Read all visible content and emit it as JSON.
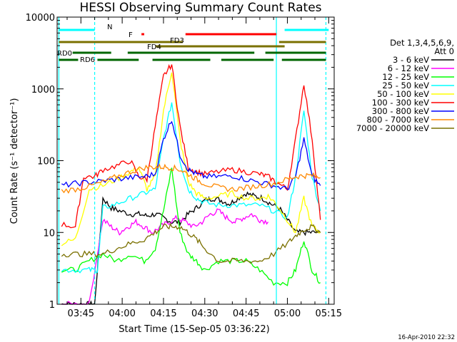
{
  "chart_data": {
    "type": "line",
    "title": "HESSI Observing Summary Count Rates",
    "xlabel": "Start Time (15-Sep-05 03:36:22)",
    "ylabel": "Count Rate (s⁻¹ detector⁻¹)",
    "yscale": "log",
    "ylim": [
      1,
      10000
    ],
    "xlim": [
      "03:36:22",
      "05:17:00"
    ],
    "x_tick_labels": [
      "03:45",
      "04:00",
      "04:15",
      "04:30",
      "04:45",
      "05:00",
      "05:15"
    ],
    "y_tick_labels": [
      "1",
      "10",
      "100",
      "1000",
      "10000"
    ],
    "legend_header": [
      "Det 1,3,4,5,6,9,",
      "Att 0"
    ],
    "legend_position": "right",
    "footer": "16-Apr-2010 22:32",
    "series": [
      {
        "name": "3 - 6 keV",
        "color": "#000000",
        "x": [
          "03:38",
          "03:40",
          "03:43",
          "03:46",
          "03:48",
          "03:50",
          "03:53",
          "03:56",
          "03:59",
          "04:03",
          "04:06",
          "04:09",
          "04:12",
          "04:15",
          "04:18",
          "04:21",
          "04:24",
          "04:27",
          "04:30",
          "04:33",
          "04:36",
          "04:39",
          "04:42",
          "04:45",
          "04:48",
          "04:51",
          "04:54",
          "04:57",
          "05:00",
          "05:03",
          "05:06",
          "05:09",
          "05:12"
        ],
        "y": [
          1,
          1,
          1,
          1,
          1,
          1,
          30,
          22,
          20,
          18,
          18,
          17,
          18,
          16,
          14,
          14,
          18,
          22,
          28,
          30,
          28,
          25,
          30,
          35,
          32,
          30,
          25,
          22,
          15,
          10,
          10,
          10,
          10
        ]
      },
      {
        "name": "6 - 12 keV",
        "color": "#ff00ff",
        "x": [
          "03:38",
          "03:43",
          "03:48",
          "03:53",
          "03:56",
          "03:59",
          "04:02",
          "04:05",
          "04:08",
          "04:11",
          "04:14",
          "04:17",
          "04:20",
          "04:23",
          "04:26",
          "04:29",
          "04:32",
          "04:35",
          "04:38",
          "04:41",
          "04:44",
          "04:47",
          "04:50",
          "04:53"
        ],
        "y": [
          1,
          1,
          1,
          15,
          12,
          10,
          12,
          14,
          12,
          10,
          12,
          14,
          16,
          14,
          12,
          14,
          18,
          20,
          16,
          14,
          16,
          18,
          15,
          14
        ]
      },
      {
        "name": "12 - 25 keV",
        "color": "#00ff00",
        "x": [
          "03:38",
          "03:43",
          "03:48",
          "03:53",
          "03:58",
          "04:03",
          "04:08",
          "04:12",
          "04:15",
          "04:18",
          "04:21",
          "04:24",
          "04:27",
          "04:30",
          "04:35",
          "04:40",
          "04:45",
          "04:50",
          "04:55",
          "05:00",
          "05:03",
          "05:06",
          "05:09",
          "05:12"
        ],
        "y": [
          3,
          3,
          4,
          5,
          4,
          5,
          4,
          6,
          20,
          80,
          10,
          5,
          4,
          3,
          4,
          4,
          4,
          3,
          2,
          2,
          3,
          8,
          3,
          2
        ]
      },
      {
        "name": "25 - 50 keV",
        "color": "#00ffff",
        "x": [
          "03:38",
          "03:43",
          "03:48",
          "03:51",
          "03:53",
          "03:58",
          "04:03",
          "04:08",
          "04:12",
          "04:15",
          "04:18",
          "04:21",
          "04:24",
          "04:27",
          "04:30",
          "04:35",
          "04:40",
          "04:45",
          "04:50",
          "04:55",
          "05:00",
          "05:03",
          "05:06",
          "05:09",
          "05:12"
        ],
        "y": [
          3,
          3,
          3,
          3,
          22,
          25,
          30,
          35,
          40,
          200,
          650,
          100,
          40,
          30,
          26,
          24,
          24,
          24,
          24,
          20,
          16,
          60,
          500,
          60,
          20
        ]
      },
      {
        "name": "50 - 100 keV",
        "color": "#ffff00",
        "x": [
          "03:38",
          "03:43",
          "03:48",
          "03:53",
          "03:58",
          "04:03",
          "04:06",
          "04:09",
          "04:12",
          "04:15",
          "04:18",
          "04:21",
          "04:24",
          "04:27",
          "04:30",
          "04:35",
          "04:40",
          "04:45",
          "04:50",
          "04:53",
          "04:56",
          "05:00",
          "05:03",
          "05:06",
          "05:09",
          "05:12"
        ],
        "y": [
          7,
          8,
          40,
          45,
          55,
          70,
          80,
          40,
          60,
          500,
          1800,
          200,
          50,
          35,
          30,
          32,
          35,
          30,
          30,
          32,
          25,
          15,
          10,
          30,
          12,
          10
        ]
      },
      {
        "name": "100 - 300 keV",
        "color": "#ff0000",
        "x": [
          "03:38",
          "03:43",
          "03:46",
          "03:50",
          "03:53",
          "03:58",
          "04:03",
          "04:06",
          "04:09",
          "04:12",
          "04:15",
          "04:18",
          "04:21",
          "04:24",
          "04:27",
          "04:30",
          "04:35",
          "04:40",
          "04:45",
          "04:50",
          "04:53",
          "04:56",
          "05:00",
          "05:03",
          "05:06",
          "05:09",
          "05:12"
        ],
        "y": [
          13,
          12,
          60,
          60,
          75,
          85,
          100,
          60,
          55,
          300,
          1500,
          2200,
          300,
          80,
          70,
          65,
          70,
          75,
          70,
          65,
          60,
          50,
          40,
          200,
          1200,
          200,
          15
        ]
      },
      {
        "name": "300 - 800 keV",
        "color": "#0000ff",
        "x": [
          "03:38",
          "03:43",
          "03:48",
          "03:53",
          "03:58",
          "04:03",
          "04:08",
          "04:12",
          "04:15",
          "04:18",
          "04:21",
          "04:24",
          "04:27",
          "04:30",
          "04:35",
          "04:40",
          "04:45",
          "04:50",
          "04:55",
          "05:00",
          "05:03",
          "05:06",
          "05:09",
          "05:12"
        ],
        "y": [
          45,
          48,
          50,
          52,
          55,
          58,
          60,
          65,
          200,
          380,
          120,
          75,
          65,
          60,
          60,
          62,
          55,
          50,
          45,
          40,
          60,
          200,
          60,
          45
        ]
      },
      {
        "name": "800 - 7000 keV",
        "color": "#ff8800",
        "x": [
          "03:38",
          "03:43",
          "03:48",
          "03:53",
          "03:58",
          "04:03",
          "04:08",
          "04:12",
          "04:15",
          "04:18",
          "04:21",
          "04:24",
          "04:27",
          "04:30",
          "04:35",
          "04:40",
          "04:45",
          "04:50",
          "04:55",
          "05:00",
          "05:03",
          "05:06",
          "05:09",
          "05:12"
        ],
        "y": [
          38,
          40,
          44,
          50,
          60,
          70,
          80,
          82,
          82,
          80,
          75,
          65,
          55,
          48,
          42,
          40,
          42,
          45,
          48,
          55,
          60,
          62,
          62,
          58
        ]
      },
      {
        "name": "7000 - 20000 keV",
        "color": "#7a7000",
        "x": [
          "03:38",
          "03:43",
          "03:48",
          "03:53",
          "03:58",
          "04:03",
          "04:08",
          "04:12",
          "04:15",
          "04:18",
          "04:21",
          "04:24",
          "04:27",
          "04:30",
          "04:35",
          "04:40",
          "04:45",
          "04:50",
          "04:55",
          "05:00",
          "05:03",
          "05:06",
          "05:09",
          "05:12"
        ],
        "y": [
          5,
          5,
          5,
          5,
          6,
          7,
          8,
          10,
          12,
          12,
          12,
          10,
          8,
          6,
          4,
          4,
          4,
          4,
          5,
          7,
          9,
          11,
          12,
          10
        ]
      }
    ],
    "bars": [
      {
        "label": "N",
        "color": "#00ffff",
        "row": 1,
        "segments": [
          [
            "03:37",
            "03:50"
          ],
          [
            "04:59",
            "05:15"
          ]
        ]
      },
      {
        "label": "F",
        "color": "#ff0000",
        "row": 2,
        "segments": [
          [
            "04:07",
            "04:08"
          ],
          [
            "04:23",
            "04:56"
          ]
        ]
      },
      {
        "label": "FD3",
        "color": "#7a7000",
        "row": 3,
        "segments": [
          [
            "03:37",
            "04:22"
          ],
          [
            "04:57",
            "05:14"
          ]
        ]
      },
      {
        "label": "FD4",
        "color": "#7a7000",
        "row": 4,
        "segments": [
          [
            "04:12",
            "04:59"
          ]
        ]
      },
      {
        "label": "RD0",
        "color": "#006600",
        "row": 5,
        "segments": [
          [
            "03:42",
            "03:56"
          ],
          [
            "04:02",
            "04:48"
          ],
          [
            "04:52",
            "05:14"
          ]
        ]
      },
      {
        "label": "RD6",
        "color": "#006600",
        "row": 6,
        "segments": [
          [
            "03:37",
            "03:44"
          ],
          [
            "03:51",
            "04:06"
          ],
          [
            "04:11",
            "04:32"
          ],
          [
            "04:36",
            "04:55"
          ],
          [
            "04:58",
            "05:14"
          ]
        ]
      }
    ],
    "vlines": [
      {
        "x": "03:37",
        "color": "#00ffff",
        "style": "solid"
      },
      {
        "x": "03:50",
        "color": "#00ffff",
        "style": "dashed"
      },
      {
        "x": "04:56",
        "color": "#00ffff",
        "style": "solid"
      },
      {
        "x": "05:14",
        "color": "#00ffff",
        "style": "dashed"
      }
    ]
  }
}
